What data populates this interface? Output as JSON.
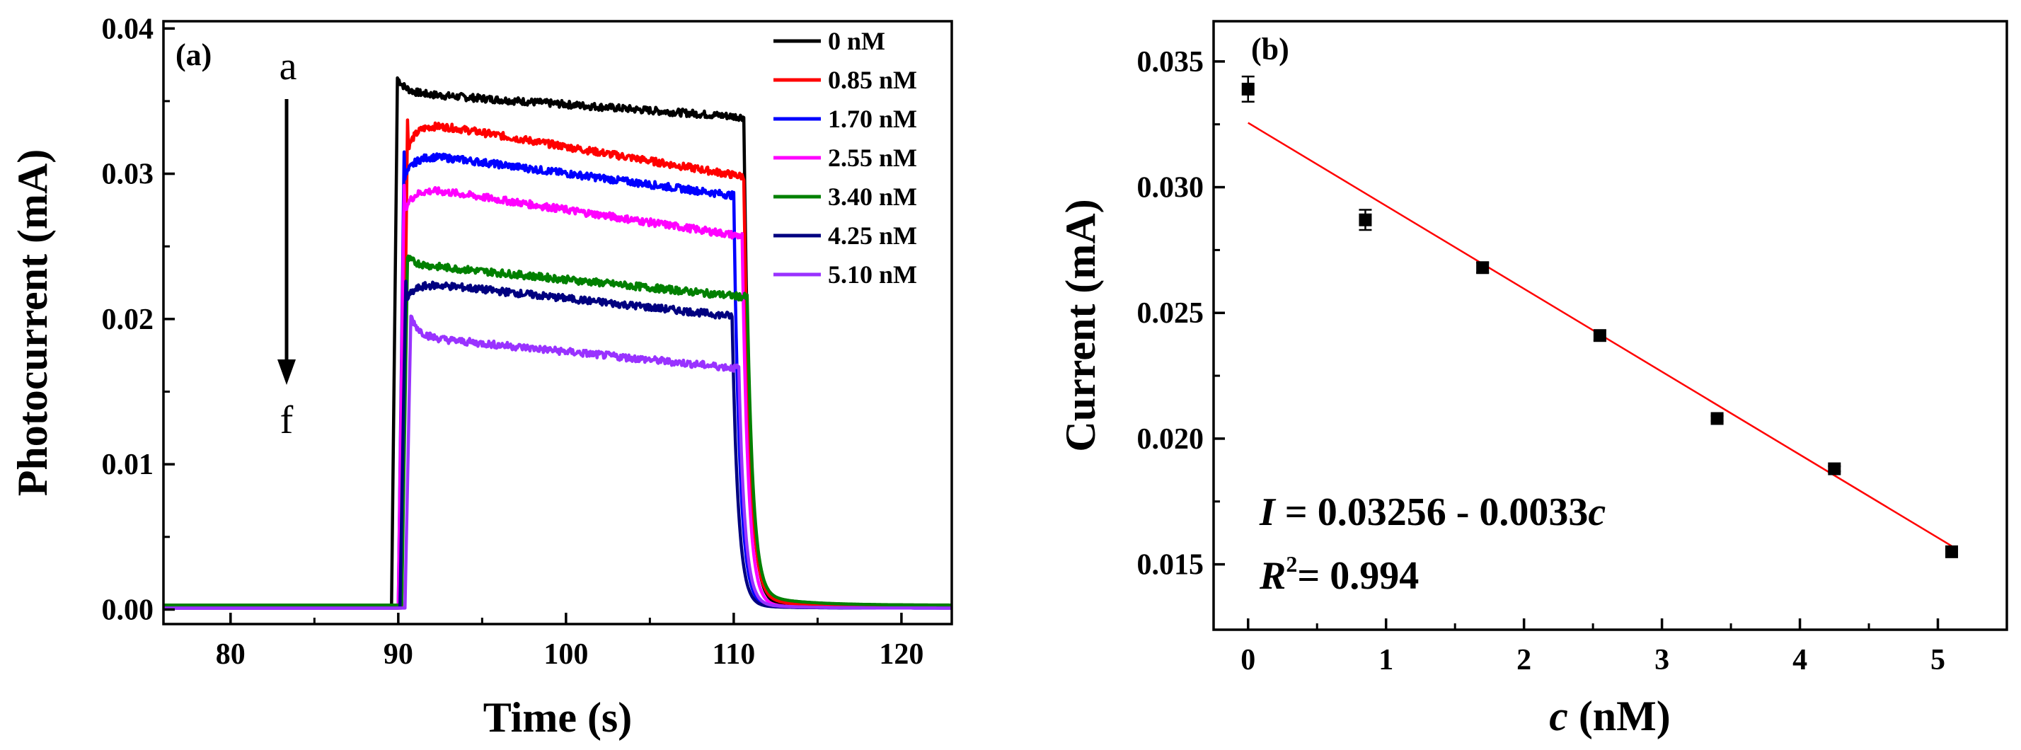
{
  "chart_data": [
    {
      "type": "line",
      "panel_label": "(a)",
      "title": "",
      "xlabel": "Time (s)",
      "ylabel": "Photocurrent (mA)",
      "xlim": [
        76,
        123
      ],
      "ylim": [
        -0.001,
        0.0405
      ],
      "xticks": [
        80,
        90,
        100,
        110,
        120
      ],
      "yticks": [
        0.0,
        0.01,
        0.02,
        0.03,
        0.04
      ],
      "ytick_labels": [
        "0.00",
        "0.01",
        "0.02",
        "0.03",
        "0.04"
      ],
      "arrow_top_label": "a",
      "arrow_bottom_label": "f",
      "legend_position": "top-right",
      "series": [
        {
          "name": "0 nM",
          "color": "#000000",
          "on": 89.6,
          "off": 110.6,
          "peak": 0.0366,
          "plateau_start": 0.0356,
          "plateau_end": 0.0339,
          "baseline": 0.0002,
          "tail": 0.0003
        },
        {
          "name": " 0.85 nM",
          "color": "#ff0000",
          "on": 90.2,
          "off": 110.6,
          "peak": 0.0337,
          "plateau_start": 0.0337,
          "plateau_end": 0.0298,
          "baseline": 0.0001,
          "tail": 0.0009
        },
        {
          "name": "1.70 nM",
          "color": "#0000ff",
          "on": 90.0,
          "off": 110.0,
          "peak": 0.0315,
          "plateau_start": 0.0315,
          "plateau_end": 0.0285,
          "baseline": 0.0001,
          "tail": 0.0002
        },
        {
          "name": "2.55 nM",
          "color": "#ff00ff",
          "on": 90.0,
          "off": 110.5,
          "peak": 0.0292,
          "plateau_start": 0.0292,
          "plateau_end": 0.0257,
          "baseline": 0.0001,
          "tail": 0.0003
        },
        {
          "name": "3.40 nM",
          "color": "#008000",
          "on": 90.2,
          "off": 110.8,
          "peak": 0.0242,
          "plateau_start": 0.0238,
          "plateau_end": 0.0215,
          "baseline": 0.0003,
          "tail": 0.0008
        },
        {
          "name": "4.25 nM",
          "color": "#000080",
          "on": 90.1,
          "off": 109.9,
          "peak": 0.0226,
          "plateau_start": 0.0226,
          "plateau_end": 0.0202,
          "baseline": 0.0001,
          "tail": 0.0002
        },
        {
          "name": "5.10 nM",
          "color": "#9932ff",
          "on": 90.4,
          "off": 110.3,
          "peak": 0.0202,
          "plateau_start": 0.0188,
          "plateau_end": 0.0166,
          "baseline": 0.0001,
          "tail": 0.0003
        }
      ]
    },
    {
      "type": "scatter",
      "panel_label": "(b)",
      "title": "",
      "xlabel": "c (nM)",
      "xlabel_italic": "c",
      "xlabel_rest": " (nM)",
      "ylabel": "Current (mA)",
      "xlim": [
        -0.25,
        5.5
      ],
      "ylim": [
        0.0124,
        0.0366
      ],
      "xticks": [
        0,
        1,
        2,
        3,
        4,
        5
      ],
      "yticks": [
        0.015,
        0.02,
        0.025,
        0.03,
        0.035
      ],
      "ytick_labels": [
        "0.015",
        "0.020",
        "0.025",
        "0.030",
        "0.035"
      ],
      "x": [
        0,
        0.85,
        1.7,
        2.55,
        3.4,
        4.25,
        5.1
      ],
      "y": [
        0.0339,
        0.0287,
        0.0268,
        0.0241,
        0.0208,
        0.0188,
        0.0155
      ],
      "yerr": [
        0.0005,
        0.0004,
        0.0002,
        0.0002,
        0.0001,
        0.0001,
        0.0001
      ],
      "fit": {
        "intercept": 0.03256,
        "slope": -0.0033,
        "x_range": [
          0,
          5.1
        ],
        "color": "#ff0000"
      },
      "equation": {
        "I": "I",
        "body": " = 0.03256 - 0.0033",
        "c": "c",
        "R": "R",
        "sup": "2",
        "r2_value": "= 0.994"
      }
    }
  ]
}
